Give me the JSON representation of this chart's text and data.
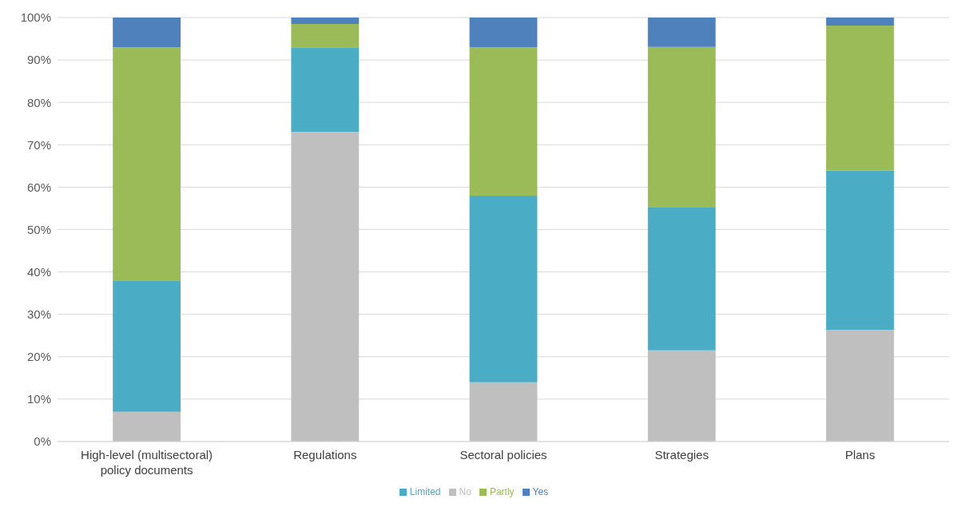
{
  "chart_data": {
    "type": "bar",
    "stacked": true,
    "categories": [
      "High-level (multisectoral) policy documents",
      "Regulations",
      "Sectoral policies",
      "Strategies",
      "Plans"
    ],
    "series": [
      {
        "name": "No",
        "color": "#bfbfbf",
        "values": [
          7,
          73,
          14,
          21.5,
          26.3
        ]
      },
      {
        "name": "Limited",
        "color": "#4bacc6",
        "values": [
          31,
          20,
          44,
          33.7,
          37.6
        ]
      },
      {
        "name": "Partly",
        "color": "#9bbb59",
        "values": [
          55,
          5.5,
          35,
          37.9,
          34.2
        ]
      },
      {
        "name": "Yes",
        "color": "#4f81bd",
        "values": [
          7,
          1.5,
          7,
          6.9,
          1.9
        ]
      }
    ],
    "ylim": [
      0,
      100
    ],
    "yticks": [
      {
        "value": 0,
        "label": "0%"
      },
      {
        "value": 10,
        "label": "10%"
      },
      {
        "value": 20,
        "label": "20%"
      },
      {
        "value": 30,
        "label": "30%"
      },
      {
        "value": 40,
        "label": "40%"
      },
      {
        "value": 50,
        "label": "50%"
      },
      {
        "value": 60,
        "label": "60%"
      },
      {
        "value": 70,
        "label": "70%"
      },
      {
        "value": 80,
        "label": "80%"
      },
      {
        "value": 90,
        "label": "90%"
      },
      {
        "value": 100,
        "label": "100%"
      }
    ],
    "grid": "y",
    "legend": "bottom"
  }
}
